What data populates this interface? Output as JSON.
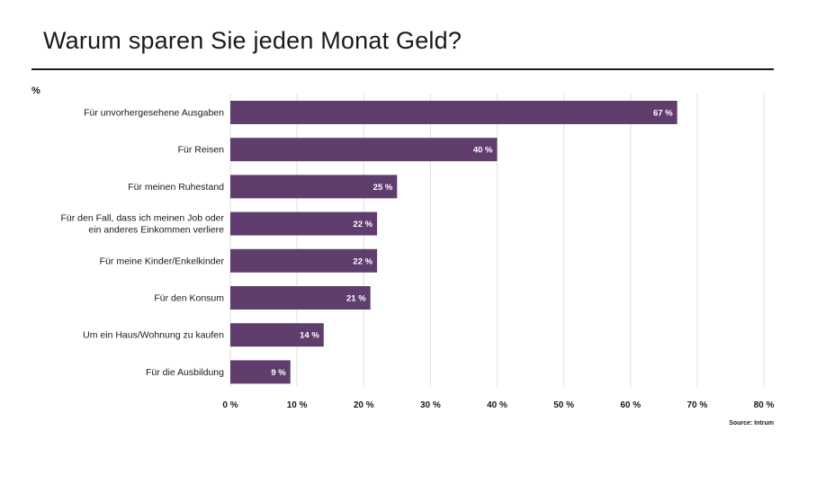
{
  "chart_data": {
    "type": "bar",
    "orientation": "horizontal",
    "title": "Warum sparen Sie jeden Monat Geld?",
    "unit_label": "%",
    "source": "Source: Intrum",
    "categories": [
      [
        "Für unvorhergesehene Ausgaben"
      ],
      [
        "Für Reisen"
      ],
      [
        "Für meinen Ruhestand"
      ],
      [
        "Für den Fall, dass ich meinen Job oder",
        "ein anderes Einkommen verliere"
      ],
      [
        "Für meine Kinder/Enkelkinder"
      ],
      [
        "Für den Konsum"
      ],
      [
        "Um ein Haus/Wohnung zu kaufen"
      ],
      [
        "Für die Ausbildung"
      ]
    ],
    "values": [
      67,
      40,
      25,
      22,
      22,
      21,
      14,
      9
    ],
    "value_labels": [
      "67 %",
      "40 %",
      "25 %",
      "22 %",
      "22 %",
      "21 %",
      "14 %",
      "9 %"
    ],
    "xlim": [
      0,
      80
    ],
    "xticks": [
      0,
      10,
      20,
      30,
      40,
      50,
      60,
      70,
      80
    ],
    "xtick_labels": [
      "0 %",
      "10 %",
      "20 %",
      "30 %",
      "40 %",
      "50 %",
      "60 %",
      "70 %",
      "80 %"
    ],
    "grid": true,
    "colors": {
      "bar": "#5f3e6e",
      "grid": "#dddddd",
      "text": "#1a1a1a"
    }
  }
}
